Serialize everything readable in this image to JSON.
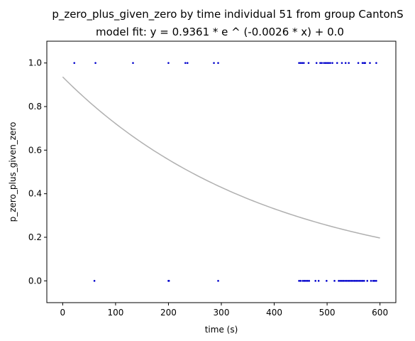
{
  "chart_data": {
    "type": "scatter",
    "title": "p_zero_plus_given_zero by time individual 51 from group CantonS",
    "subtitle": "model fit: y = 0.9361 * e ^ (-0.0026 * x) + 0.0",
    "xlabel": "time (s)",
    "ylabel": "p_zero_plus_given_zero",
    "xlim": [
      -30,
      630
    ],
    "ylim": [
      -0.1,
      1.1
    ],
    "xticks": [
      0,
      100,
      200,
      300,
      400,
      500,
      600
    ],
    "yticks": [
      0.0,
      0.2,
      0.4,
      0.6,
      0.8,
      1.0
    ],
    "xtick_labels": [
      "0",
      "100",
      "200",
      "300",
      "400",
      "500",
      "600"
    ],
    "ytick_labels": [
      "0.0",
      "0.2",
      "0.4",
      "0.6",
      "0.8",
      "1.0"
    ],
    "grid": false,
    "point_color": "#0000cc",
    "fit_color": "#b0b0b0",
    "fit": {
      "a": 0.9361,
      "b": -0.0026,
      "c": 0.0,
      "x_range": [
        0,
        600
      ]
    },
    "series": [
      {
        "points": [
          [
            22,
            1
          ],
          [
            62,
            1
          ],
          [
            133,
            1
          ],
          [
            200,
            1
          ],
          [
            232,
            1
          ],
          [
            236,
            1
          ],
          [
            286,
            1
          ],
          [
            294,
            1
          ],
          [
            447,
            1
          ],
          [
            450,
            1
          ],
          [
            453,
            1
          ],
          [
            456,
            1
          ],
          [
            465,
            1
          ],
          [
            480,
            1
          ],
          [
            487,
            1
          ],
          [
            490,
            1
          ],
          [
            494,
            1
          ],
          [
            497,
            1
          ],
          [
            500,
            1
          ],
          [
            503,
            1
          ],
          [
            506,
            1
          ],
          [
            510,
            1
          ],
          [
            519,
            1
          ],
          [
            528,
            1
          ],
          [
            535,
            1
          ],
          [
            541,
            1
          ],
          [
            559,
            1
          ],
          [
            567,
            1
          ],
          [
            570,
            1
          ],
          [
            572,
            1
          ],
          [
            581,
            1
          ],
          [
            593,
            1
          ],
          [
            60,
            0
          ],
          [
            200,
            0
          ],
          [
            201,
            0
          ],
          [
            294,
            0
          ],
          [
            447,
            0
          ],
          [
            450,
            0
          ],
          [
            454,
            0
          ],
          [
            457,
            0
          ],
          [
            460,
            0
          ],
          [
            463,
            0
          ],
          [
            466,
            0
          ],
          [
            478,
            0
          ],
          [
            484,
            0
          ],
          [
            499,
            0
          ],
          [
            514,
            0
          ],
          [
            522,
            0
          ],
          [
            525,
            0
          ],
          [
            528,
            0
          ],
          [
            531,
            0
          ],
          [
            534,
            0
          ],
          [
            537,
            0
          ],
          [
            540,
            0
          ],
          [
            543,
            0
          ],
          [
            546,
            0
          ],
          [
            549,
            0
          ],
          [
            552,
            0
          ],
          [
            555,
            0
          ],
          [
            558,
            0
          ],
          [
            561,
            0
          ],
          [
            564,
            0
          ],
          [
            567,
            0
          ],
          [
            570,
            0
          ],
          [
            576,
            0
          ],
          [
            583,
            0
          ],
          [
            587,
            0
          ],
          [
            590,
            0
          ],
          [
            593,
            0
          ]
        ]
      }
    ]
  }
}
